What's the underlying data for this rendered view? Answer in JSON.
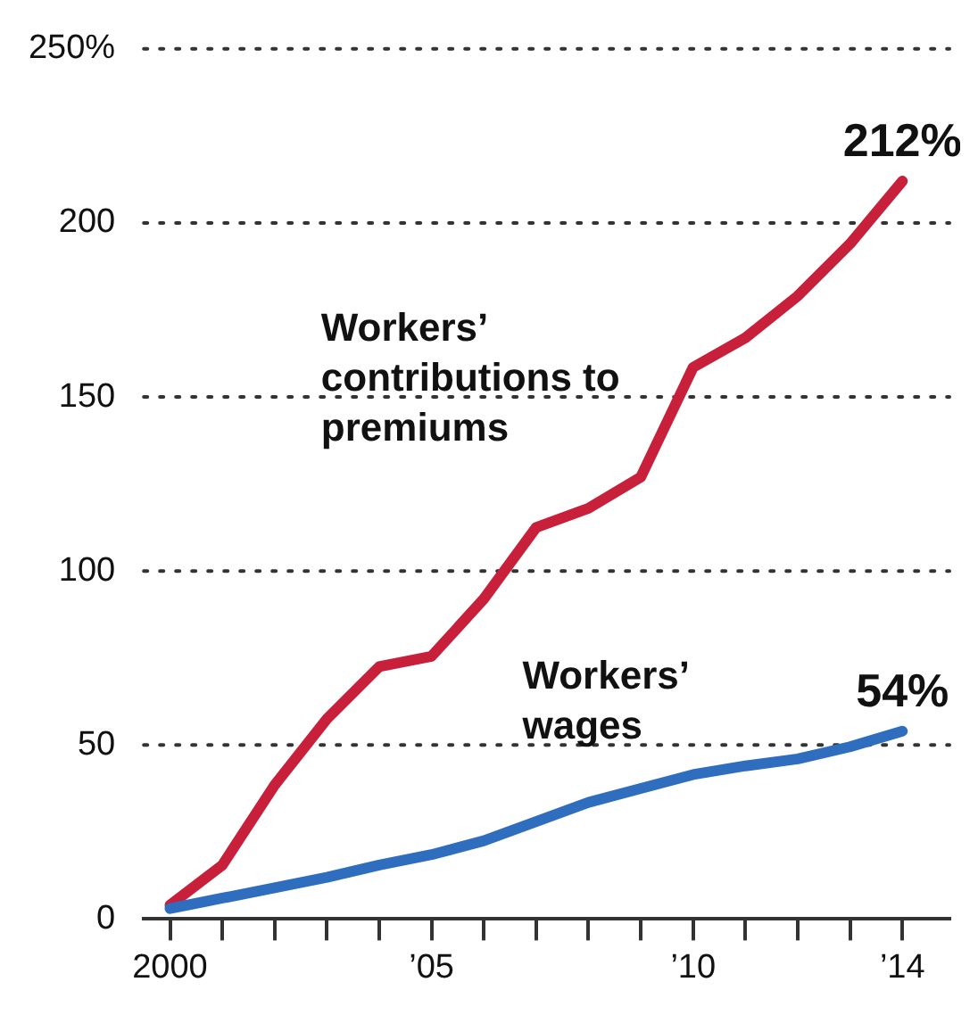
{
  "chart_data": {
    "type": "line",
    "x": [
      2000,
      2001,
      2002,
      2003,
      2004,
      2005,
      2006,
      2007,
      2008,
      2009,
      2010,
      2011,
      2012,
      2013,
      2014
    ],
    "series": [
      {
        "name": "Workers’ contributions to premiums",
        "color": "#c8203a",
        "values": [
          4,
          15.5,
          38.5,
          57.5,
          72.5,
          75.5,
          92,
          112.5,
          118,
          127,
          158.5,
          167,
          179,
          194,
          212
        ]
      },
      {
        "name": "Workers’ wages",
        "color": "#2f6dbf",
        "values": [
          3,
          6,
          9,
          12,
          15.5,
          18.5,
          22.5,
          28,
          33.5,
          37.5,
          41.5,
          44,
          46,
          49.5,
          54
        ]
      }
    ],
    "xlim": [
      1999.5,
      2014.9
    ],
    "xticks": [
      {
        "value": 2000,
        "label": "2000"
      },
      {
        "value": 2001,
        "label": null
      },
      {
        "value": 2002,
        "label": null
      },
      {
        "value": 2003,
        "label": null
      },
      {
        "value": 2004,
        "label": null
      },
      {
        "value": 2005,
        "label": "’05"
      },
      {
        "value": 2006,
        "label": null
      },
      {
        "value": 2007,
        "label": null
      },
      {
        "value": 2008,
        "label": null
      },
      {
        "value": 2009,
        "label": null
      },
      {
        "value": 2010,
        "label": "’10"
      },
      {
        "value": 2011,
        "label": null
      },
      {
        "value": 2012,
        "label": null
      },
      {
        "value": 2013,
        "label": null
      },
      {
        "value": 2014,
        "label": "’14"
      }
    ],
    "ylim": [
      0,
      250
    ],
    "yticks": [
      0,
      50,
      100,
      150,
      200,
      {
        "value": 250,
        "label": "250%"
      }
    ],
    "grid": "y",
    "legend": false,
    "marker": "none",
    "line_style": "solid",
    "annotations": [
      {
        "text": "212%",
        "x": 2014,
        "y": 212
      },
      {
        "text": "54%",
        "x": 2014,
        "y": 54
      }
    ]
  }
}
